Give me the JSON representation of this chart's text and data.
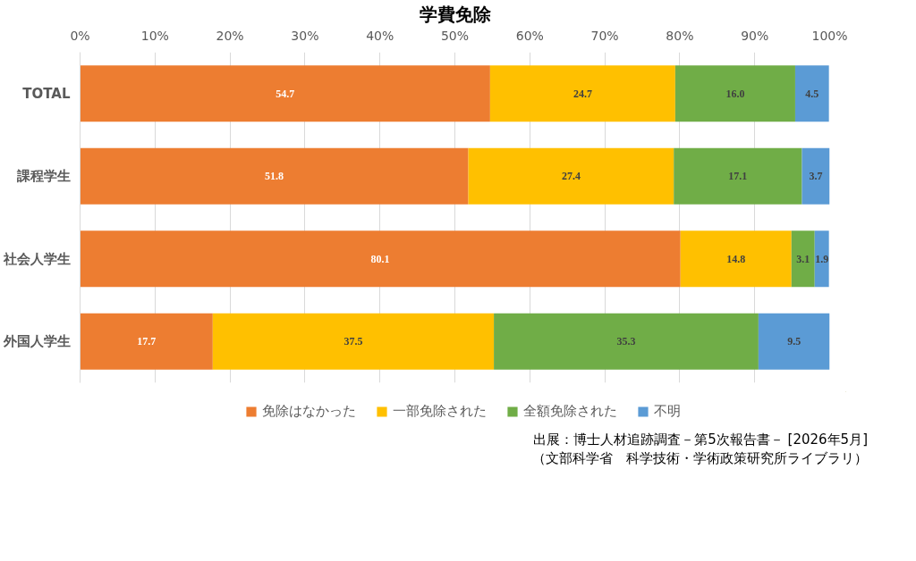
{
  "chart_data": {
    "type": "bar",
    "orientation": "horizontal",
    "stacked": true,
    "title": "学費免除",
    "categories": [
      "TOTAL",
      "課程学生",
      "社会人学生",
      "外国人学生"
    ],
    "series": [
      {
        "name": "免除はなかった",
        "color": "#ed7d31",
        "values": [
          54.7,
          51.8,
          80.1,
          17.7
        ],
        "value_labels": [
          "54.7",
          "51.8",
          "80.1",
          "17.7"
        ]
      },
      {
        "name": "一部免除された",
        "color": "#ffc000",
        "values": [
          24.7,
          27.4,
          14.8,
          37.5
        ],
        "value_labels": [
          "24.7",
          "27.4",
          "14.8",
          "37.5"
        ]
      },
      {
        "name": "全額免除された",
        "color": "#70ad47",
        "values": [
          16.0,
          17.1,
          3.1,
          35.3
        ],
        "value_labels": [
          "16.0",
          "17.1",
          "3.1",
          "35.3"
        ]
      },
      {
        "name": "不明",
        "color": "#5b9bd5",
        "values": [
          4.5,
          3.7,
          1.9,
          9.5
        ],
        "value_labels": [
          "4.5",
          "3.7",
          "1.9",
          "9.5"
        ]
      }
    ],
    "xlim": [
      0,
      100
    ],
    "xticks": [
      {
        "value": 0,
        "label": "0%"
      },
      {
        "value": 10,
        "label": "10%"
      },
      {
        "value": 20,
        "label": "20%"
      },
      {
        "value": 30,
        "label": "30%"
      },
      {
        "value": 40,
        "label": "40%"
      },
      {
        "value": 50,
        "label": "50%"
      },
      {
        "value": 60,
        "label": "60%"
      },
      {
        "value": 70,
        "label": "70%"
      },
      {
        "value": 80,
        "label": "80%"
      },
      {
        "value": 90,
        "label": "90%"
      },
      {
        "value": 100,
        "label": "100%"
      }
    ],
    "grid": "x",
    "legend": "bottom",
    "data_labels": true,
    "annotations": [
      "出展：博士人材追跡調査－第5次報告書－ [2026年5月]",
      "（文部科学省　科学技術・学術政策研究所ライブラリ）"
    ]
  }
}
